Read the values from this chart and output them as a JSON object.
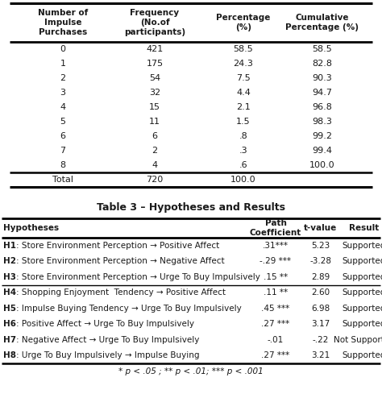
{
  "table1_headers": [
    "Number of\nImpulse\nPurchases",
    "Frequency\n(No.of\nparticipants)",
    "Percentage\n(%)",
    "Cumulative\nPercentage (%)"
  ],
  "table1_rows": [
    [
      "0",
      "421",
      "58.5",
      "58.5"
    ],
    [
      "1",
      "175",
      "24.3",
      "82.8"
    ],
    [
      "2",
      "54",
      "7.5",
      "90.3"
    ],
    [
      "3",
      "32",
      "4.4",
      "94.7"
    ],
    [
      "4",
      "15",
      "2.1",
      "96.8"
    ],
    [
      "5",
      "11",
      "1.5",
      "98.3"
    ],
    [
      "6",
      "6",
      ".8",
      "99.2"
    ],
    [
      "7",
      "2",
      ".3",
      "99.4"
    ],
    [
      "8",
      "4",
      ".6",
      "100.0"
    ]
  ],
  "table1_total": [
    "Total",
    "720",
    "100.0",
    ""
  ],
  "table2_title": "Table 3 – Hypotheses and Results",
  "table2_headers": [
    "Hypotheses",
    "Path\nCoefficient",
    "t-value",
    "Result"
  ],
  "table2_rows": [
    [
      "H1",
      ": Store Environment Perception → Positive Affect",
      ".31***",
      "5.23",
      "Supported"
    ],
    [
      "H2",
      ": Store Environment Perception → Negative Affect",
      "-.29 ***",
      "-3.28",
      "Supported"
    ],
    [
      "H3",
      ": Store Environment Perception → Urge To Buy Impulsively",
      ".15 **",
      "2.89",
      "Supported"
    ],
    [
      "H4",
      ": Shopping Enjoyment  Tendency → Positive Affect",
      ".11 **",
      "2.60",
      "Supported"
    ],
    [
      "H5",
      ": Impulse Buying Tendency → Urge To Buy Impulsively",
      ".45 ***",
      "6.98",
      "Supported"
    ],
    [
      "H6",
      ": Positive Affect → Urge To Buy Impulsively",
      ".27 ***",
      "3.17",
      "Supported"
    ],
    [
      "H7",
      ": Negative Affect → Urge To Buy Impulsively",
      "-.01",
      "-.22",
      "Not Supported"
    ],
    [
      "H8",
      ": Urge To Buy Impulsively → Impulse Buying",
      ".27 ***",
      "3.21",
      "Supported"
    ]
  ],
  "table2_footnote": "* p < .05 ; ** p < .01; *** p < .001",
  "bg_color": "#ffffff",
  "text_color": "#1a1a1a"
}
